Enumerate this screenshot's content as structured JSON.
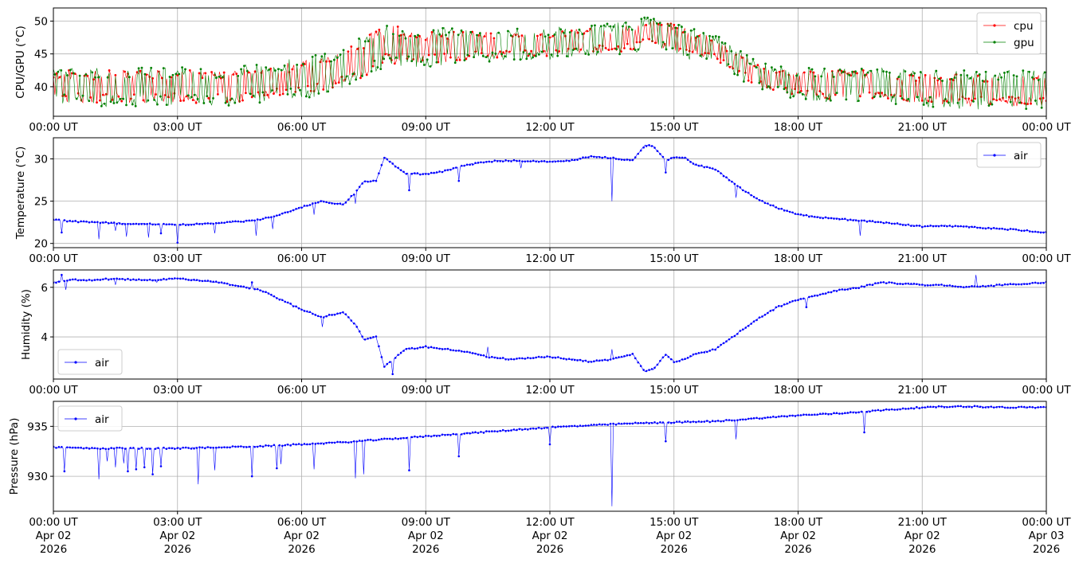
{
  "colors": {
    "cpu": "#ff0000",
    "gpu": "#008000",
    "air": "#0000ff",
    "grid": "#b0b0b0"
  },
  "chart_data": [
    {
      "type": "line",
      "ylabel": "CPU/GPU (°C)",
      "ylim": [
        35.5,
        52
      ],
      "yticks": [
        40,
        45,
        50
      ],
      "xlim": [
        0,
        24
      ],
      "xticks": [
        0,
        3,
        6,
        9,
        12,
        15,
        18,
        21,
        24
      ],
      "xtick_labels": [
        "00:00 UT",
        "03:00 UT",
        "06:00 UT",
        "09:00 UT",
        "12:00 UT",
        "15:00 UT",
        "18:00 UT",
        "21:00 UT",
        "00:00 UT"
      ],
      "grid": true,
      "legend": "top-right",
      "series": [
        {
          "name": "cpu",
          "color": "#ff0000",
          "x": [
            0,
            1,
            2,
            3,
            4,
            5,
            6,
            7,
            7.5,
            8,
            8.5,
            9,
            10,
            11,
            12,
            13,
            14,
            14.5,
            15,
            16,
            17,
            18,
            19,
            20,
            21,
            22,
            23,
            24
          ],
          "low": [
            37.5,
            37.5,
            37.5,
            37.5,
            37.5,
            38,
            38.5,
            40,
            41.5,
            43.5,
            43.5,
            43.5,
            44,
            44.5,
            44.5,
            45,
            45.5,
            46.5,
            45,
            44,
            40,
            38.5,
            38,
            38,
            37.5,
            37,
            37,
            37
          ],
          "high": [
            42.5,
            42.5,
            42.5,
            42.5,
            42.5,
            43,
            44,
            45.5,
            47.5,
            49.5,
            49,
            48.5,
            48.5,
            48.5,
            48.5,
            49,
            49.5,
            51,
            49.5,
            47.5,
            43.5,
            42.5,
            42.5,
            42.5,
            42,
            42,
            42,
            42
          ]
        },
        {
          "name": "gpu",
          "color": "#008000",
          "x": [
            0,
            1,
            2,
            3,
            4,
            5,
            6,
            7,
            7.5,
            8,
            8.5,
            9,
            10,
            11,
            12,
            13,
            14,
            14.5,
            15,
            16,
            17,
            18,
            19,
            20,
            21,
            22,
            23,
            24
          ],
          "low": [
            37,
            37,
            37,
            37,
            37,
            37.5,
            38,
            39.5,
            41,
            43,
            43,
            43,
            43.5,
            44,
            44,
            44.5,
            45,
            46,
            44.5,
            43.5,
            39.5,
            38,
            37.5,
            37.5,
            37,
            36.5,
            36.5,
            36.5
          ],
          "high": [
            43,
            43,
            43,
            43,
            43,
            43.5,
            44.5,
            46,
            48,
            49.5,
            49,
            49,
            49,
            49,
            49,
            49.5,
            50,
            51,
            50,
            48,
            44,
            43,
            43,
            43,
            42.5,
            42.5,
            42.5,
            42.5
          ]
        }
      ]
    },
    {
      "type": "line",
      "ylabel": "Temperature (°C)",
      "ylim": [
        19.5,
        32.5
      ],
      "yticks": [
        20,
        25,
        30
      ],
      "xlim": [
        0,
        24
      ],
      "xticks": [
        0,
        3,
        6,
        9,
        12,
        15,
        18,
        21,
        24
      ],
      "xtick_labels": [
        "00:00 UT",
        "03:00 UT",
        "06:00 UT",
        "09:00 UT",
        "12:00 UT",
        "15:00 UT",
        "18:00 UT",
        "21:00 UT",
        "00:00 UT"
      ],
      "grid": true,
      "legend": "top-right",
      "series": [
        {
          "name": "air",
          "color": "#0000ff",
          "x": [
            0,
            0.5,
            1,
            1.5,
            2,
            2.5,
            3,
            4,
            5,
            5.5,
            6,
            6.5,
            7,
            7.3,
            7.5,
            7.8,
            8,
            8.3,
            8.5,
            9,
            9.5,
            10,
            10.5,
            11,
            12,
            12.5,
            13,
            13.5,
            14,
            14.3,
            14.5,
            14.8,
            15,
            15.3,
            15.5,
            16,
            16.5,
            17,
            17.5,
            18,
            18.5,
            19,
            19.5,
            20,
            21,
            21.5,
            22,
            23,
            24
          ],
          "values": [
            22.8,
            22.6,
            22.5,
            22.4,
            22.3,
            22.3,
            22.2,
            22.4,
            22.8,
            23.5,
            24.3,
            25,
            24.6,
            26,
            27.3,
            27.4,
            30.2,
            29,
            28.3,
            28.2,
            28.6,
            29.3,
            29.7,
            29.8,
            29.7,
            29.8,
            30.3,
            30.1,
            29.8,
            31.6,
            31.5,
            29.8,
            30.2,
            30.1,
            29.3,
            28.8,
            26.9,
            25.3,
            24.2,
            23.4,
            23.1,
            22.9,
            22.7,
            22.5,
            22.0,
            22.1,
            22.0,
            21.7,
            21.3
          ],
          "spikes": [
            [
              0.2,
              21.3
            ],
            [
              1.1,
              20.5
            ],
            [
              1.5,
              21.5
            ],
            [
              1.75,
              20.8
            ],
            [
              2.3,
              20.7
            ],
            [
              2.6,
              21.2
            ],
            [
              3.0,
              20.1
            ],
            [
              3.9,
              21.2
            ],
            [
              4.9,
              20.9
            ],
            [
              5.3,
              21.7
            ],
            [
              6.3,
              23.4
            ],
            [
              7.3,
              24.7
            ],
            [
              8.6,
              26.3
            ],
            [
              9.8,
              27.4
            ],
            [
              11.3,
              28.9
            ],
            [
              13.5,
              25.0
            ],
            [
              14.8,
              28.4
            ],
            [
              16.5,
              25.4
            ],
            [
              19.5,
              20.9
            ]
          ]
        }
      ]
    },
    {
      "type": "line",
      "ylabel": "Humidity (%)",
      "ylim": [
        2.3,
        6.7
      ],
      "yticks": [
        4,
        6
      ],
      "xlim": [
        0,
        24
      ],
      "xticks": [
        0,
        3,
        6,
        9,
        12,
        15,
        18,
        21,
        24
      ],
      "xtick_labels": [
        "00:00 UT",
        "03:00 UT",
        "06:00 UT",
        "09:00 UT",
        "12:00 UT",
        "15:00 UT",
        "18:00 UT",
        "21:00 UT",
        "00:00 UT"
      ],
      "grid": true,
      "legend": "bottom-left",
      "series": [
        {
          "name": "air",
          "color": "#0000ff",
          "x": [
            0,
            0.5,
            1,
            1.5,
            2,
            2.5,
            3,
            4,
            5,
            5.5,
            6,
            6.5,
            7,
            7.3,
            7.5,
            7.8,
            8,
            8.3,
            8.5,
            9,
            9.5,
            10,
            10.5,
            11,
            12,
            12.5,
            13,
            13.5,
            14,
            14.3,
            14.5,
            14.8,
            15,
            15.3,
            15.5,
            16,
            16.5,
            17,
            17.5,
            18,
            18.5,
            19,
            19.5,
            20,
            21,
            21.5,
            22,
            23,
            24
          ],
          "values": [
            6.2,
            6.3,
            6.3,
            6.35,
            6.3,
            6.3,
            6.35,
            6.2,
            5.9,
            5.5,
            5.1,
            4.8,
            5.0,
            4.5,
            3.9,
            4.0,
            2.8,
            3.2,
            3.5,
            3.6,
            3.5,
            3.4,
            3.2,
            3.1,
            3.2,
            3.1,
            3.0,
            3.1,
            3.3,
            2.6,
            2.7,
            3.3,
            3.0,
            3.1,
            3.3,
            3.5,
            4.1,
            4.7,
            5.2,
            5.5,
            5.7,
            5.9,
            6.0,
            6.2,
            6.1,
            6.1,
            6.0,
            6.1,
            6.2
          ],
          "spikes": [
            [
              0.2,
              6.5
            ],
            [
              0.3,
              5.9
            ],
            [
              1.5,
              6.1
            ],
            [
              2.5,
              6.2
            ],
            [
              4.8,
              6.2
            ],
            [
              6.5,
              4.4
            ],
            [
              8.2,
              2.5
            ],
            [
              10.5,
              3.6
            ],
            [
              13.5,
              3.5
            ],
            [
              18.2,
              5.2
            ],
            [
              22.3,
              6.5
            ]
          ]
        }
      ]
    },
    {
      "type": "line",
      "ylabel": "Pressure (hPa)",
      "ylim": [
        926.5,
        937.5
      ],
      "yticks": [
        930,
        935
      ],
      "xlim": [
        0,
        24
      ],
      "xticks": [
        0,
        3,
        6,
        9,
        12,
        15,
        18,
        21,
        24
      ],
      "xtick_labels": [
        "00:00 UT",
        "03:00 UT",
        "06:00 UT",
        "09:00 UT",
        "12:00 UT",
        "15:00 UT",
        "18:00 UT",
        "21:00 UT",
        "00:00 UT"
      ],
      "xtick_sublabels": [
        "Apr 02",
        "Apr 02",
        "Apr 02",
        "Apr 02",
        "Apr 02",
        "Apr 02",
        "Apr 02",
        "Apr 02",
        "Apr 03"
      ],
      "xtick_years": [
        "2026",
        "2026",
        "2026",
        "2026",
        "2026",
        "2026",
        "2026",
        "2026",
        "2026"
      ],
      "grid": true,
      "legend": "top-left",
      "series": [
        {
          "name": "air",
          "color": "#0000ff",
          "x": [
            0,
            1,
            2,
            3,
            4,
            5,
            6,
            7,
            8,
            9,
            10,
            11,
            12,
            13,
            14,
            15,
            16,
            17,
            18,
            19,
            20,
            21,
            22,
            23,
            24
          ],
          "values": [
            932.9,
            932.8,
            932.8,
            932.8,
            932.9,
            933.0,
            933.2,
            933.4,
            933.7,
            934.0,
            934.3,
            934.6,
            934.9,
            935.1,
            935.3,
            935.4,
            935.5,
            935.8,
            936.1,
            936.3,
            936.6,
            936.9,
            937.0,
            936.9,
            936.9
          ],
          "spikes": [
            [
              0.25,
              930.5
            ],
            [
              1.1,
              929.7
            ],
            [
              1.3,
              931.5
            ],
            [
              1.5,
              930.9
            ],
            [
              1.7,
              931.3
            ],
            [
              1.8,
              930.5
            ],
            [
              2.0,
              930.7
            ],
            [
              2.2,
              930.9
            ],
            [
              2.4,
              930.2
            ],
            [
              2.6,
              931.0
            ],
            [
              3.5,
              929.2
            ],
            [
              3.9,
              930.6
            ],
            [
              4.8,
              930.0
            ],
            [
              5.4,
              930.8
            ],
            [
              5.5,
              931.2
            ],
            [
              6.3,
              930.7
            ],
            [
              7.3,
              929.8
            ],
            [
              7.5,
              930.2
            ],
            [
              8.6,
              930.6
            ],
            [
              9.8,
              932.0
            ],
            [
              12.0,
              933.2
            ],
            [
              13.5,
              927.0
            ],
            [
              14.8,
              933.5
            ],
            [
              16.5,
              933.7
            ],
            [
              19.6,
              934.4
            ]
          ]
        }
      ]
    }
  ]
}
